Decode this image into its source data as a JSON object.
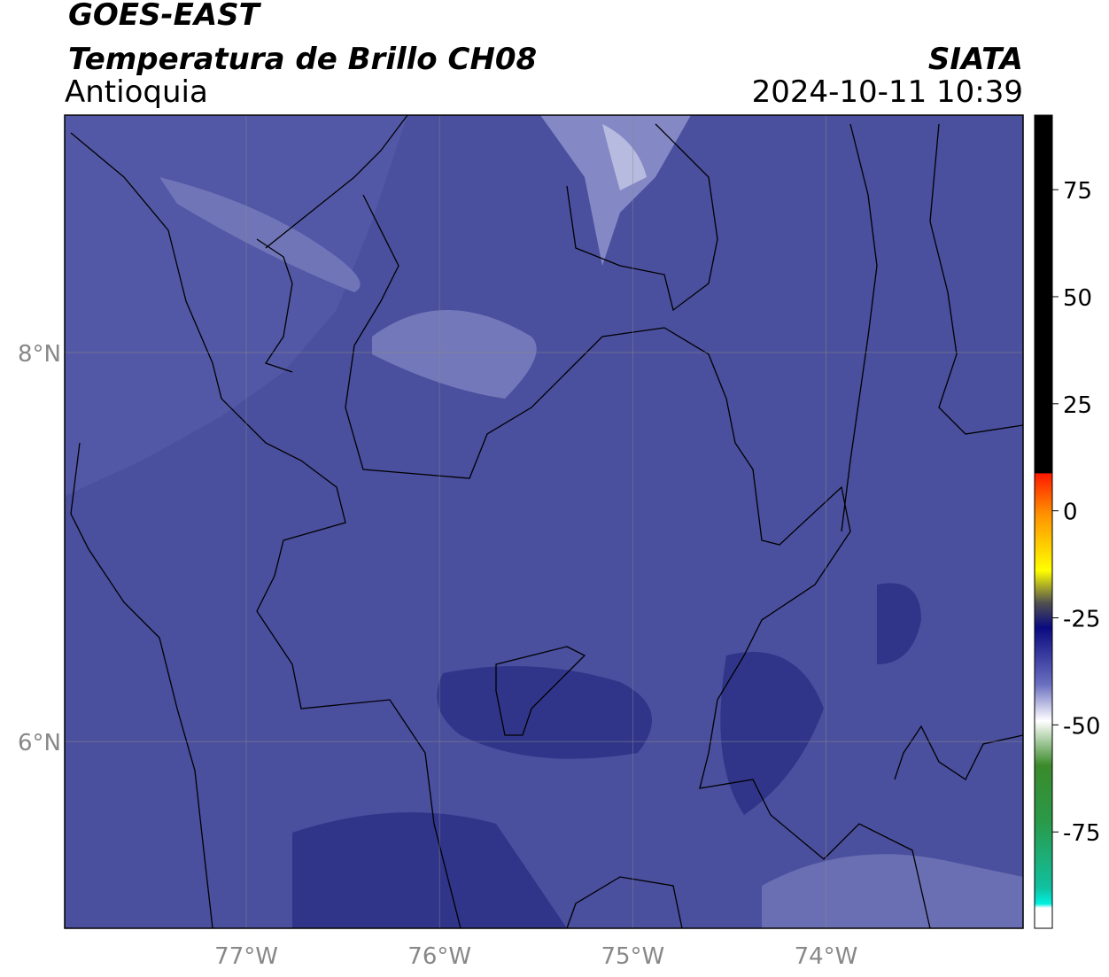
{
  "header": {
    "title": "GOES-EAST",
    "subtitle": "Temperatura de Brillo CH08",
    "region": "Antioquia",
    "source": "SIATA",
    "datetime": "2024-10-11 10:39"
  },
  "map": {
    "xlim": [
      -77.94,
      -72.98
    ],
    "ylim": [
      5.04,
      9.22
    ],
    "xticks": [
      {
        "value": -77,
        "label": "77°W"
      },
      {
        "value": -76,
        "label": "76°W"
      },
      {
        "value": -75,
        "label": "75°W"
      },
      {
        "value": -74,
        "label": "74°W"
      }
    ],
    "yticks": [
      {
        "value": 6,
        "label": "6°N"
      },
      {
        "value": 8,
        "label": "8°N"
      }
    ],
    "grid": true
  },
  "colorbar": {
    "lim": [
      -97.5,
      92.4
    ],
    "ticks": [
      -75,
      -50,
      -25,
      0,
      25,
      50,
      75
    ]
  }
}
